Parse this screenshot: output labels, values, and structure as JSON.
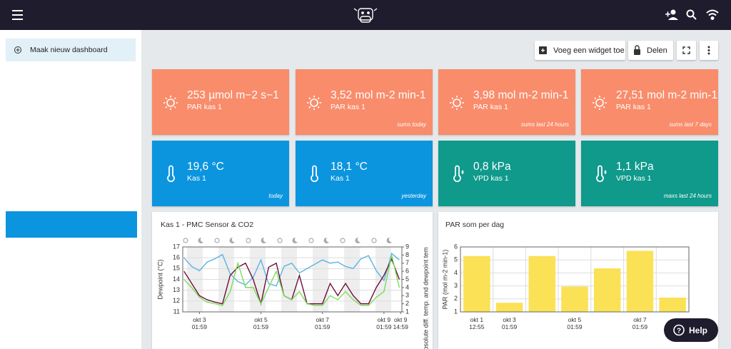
{
  "sidebar": {
    "new_dashboard": "Maak nieuw dashboard"
  },
  "toolbar": {
    "add_widget": "Voeg een widget toe",
    "share": "Delen"
  },
  "tiles": [
    {
      "value": "253",
      "unit": "µmol m−2 s−1",
      "label": "PAR kas 1",
      "color": "#f98c6b"
    },
    {
      "value": "3,52",
      "unit": "mol m-2 min-1",
      "label": "PAR kas 1",
      "period": "sums today",
      "color": "#f98c6b"
    },
    {
      "value": "3,98",
      "unit": "mol m-2 min-1",
      "label": "PAR kas 1",
      "period": "sums last 24 hours",
      "color": "#f98c6b"
    },
    {
      "value": "27,51",
      "unit": "mol m-2 min-1",
      "label": "PAR kas 1",
      "period": "sums last 7 days",
      "color": "#f98c6b"
    },
    {
      "value": "19,6",
      "unit": "°C",
      "label": "Kas 1",
      "period": "today",
      "color": "#0b95df"
    },
    {
      "value": "18,1",
      "unit": "°C",
      "label": "Kas 1",
      "period": "yesterday",
      "color": "#0b95df"
    },
    {
      "value": "0,8",
      "unit": "kPa",
      "label": "VPD kas 1",
      "color": "#0f9a8b"
    },
    {
      "value": "1,1",
      "unit": "kPa",
      "label": "VPD kas 1",
      "period": "maxs last 24 hours",
      "color": "#0f9a8b"
    }
  ],
  "chart_data": [
    {
      "type": "line",
      "title": "Kas 1 - PMC Sensor & CO2",
      "ylabel": "Dewpoint (°C)",
      "y2label": "Absolute diff. temp. and dewpoint tem",
      "x": [
        -12,
        -6,
        0,
        6,
        12,
        18,
        24,
        30,
        36,
        42,
        48,
        54,
        60,
        66,
        72,
        78,
        84,
        90,
        96,
        102,
        108,
        114,
        120,
        126,
        132,
        138,
        144,
        150,
        156
      ],
      "xlim": [
        -13,
        158
      ],
      "xticks": [
        {
          "value": 0,
          "label": "okt 3\n01:59"
        },
        {
          "value": 48,
          "label": "okt 5\n01:59"
        },
        {
          "value": 96,
          "label": "okt 7\n01:59"
        },
        {
          "value": 144,
          "label": "okt 9\n01:59"
        },
        {
          "value": 157,
          "label": "okt 9\n14:59"
        }
      ],
      "ylim": [
        11,
        17
      ],
      "yticks": [
        11,
        12,
        13,
        14,
        15,
        16,
        17
      ],
      "y2lim": [
        1,
        9
      ],
      "y2ticks": [
        1,
        2,
        3,
        4,
        5,
        6,
        7,
        8,
        9
      ],
      "grid": true,
      "series": [
        {
          "color": "#5ab4e5",
          "values": [
            16,
            15.2,
            14.8,
            15.6,
            15.9,
            16.3,
            14.5,
            13.8,
            13.5,
            14.2,
            15.8,
            13.6,
            13.4,
            15.2,
            15.5,
            14.6,
            15.0,
            15.4,
            15.8,
            15.5,
            15.6,
            15.2,
            15.0,
            15.9,
            16.2,
            14.8,
            13.9,
            16.4,
            15.8
          ]
        },
        {
          "color": "#6b0f3a",
          "axis": "y2",
          "values": [
            6,
            4.5,
            3,
            2.5,
            2.2,
            2,
            5.5,
            6.5,
            7,
            5,
            2,
            6.5,
            7,
            3,
            2.5,
            5.5,
            2,
            2,
            2,
            4.5,
            3,
            4.5,
            3,
            2,
            2,
            4,
            5.5,
            7.5,
            5
          ]
        },
        {
          "color": "#7bdc5a",
          "axis": "y2",
          "values": [
            5,
            4,
            2.8,
            2.2,
            2,
            1.8,
            3.5,
            7,
            4,
            4,
            2,
            4,
            6,
            3,
            2.5,
            3.5,
            2,
            1.8,
            1.8,
            3,
            2.5,
            3.5,
            2.5,
            1.8,
            1.8,
            2.8,
            3.5,
            8,
            4
          ]
        }
      ]
    },
    {
      "type": "bar",
      "title": "PAR som per dag",
      "ylabel": "PAR (mol m-2 min-1)",
      "categories": [
        "okt 1\n12:55",
        "okt 3\n01:59",
        null,
        "okt 5\n01:59",
        null,
        "okt 7\n01:59",
        null
      ],
      "values": [
        5.3,
        1.7,
        5.3,
        2.95,
        4.35,
        5.7,
        2.1
      ],
      "color": "#fbe155",
      "ylim": [
        1,
        6
      ],
      "yticks": [
        1,
        2,
        3,
        4,
        5,
        6
      ],
      "grid": true
    }
  ],
  "help": "Help"
}
